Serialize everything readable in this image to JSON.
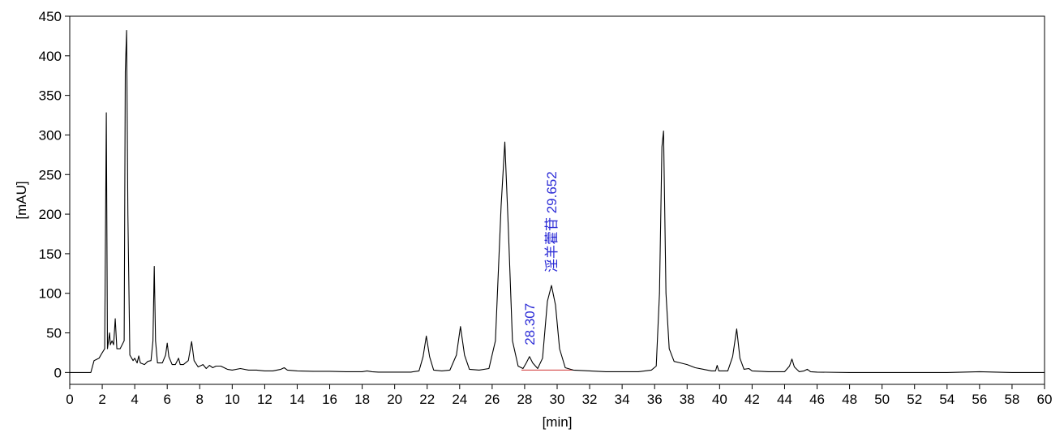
{
  "chart_data": {
    "type": "line",
    "xlabel": "[min]",
    "ylabel": "[mAU]",
    "xlim": [
      0,
      60
    ],
    "ylim": [
      -15,
      450
    ],
    "xticks": [
      0,
      2,
      4,
      6,
      8,
      10,
      12,
      14,
      16,
      18,
      20,
      22,
      24,
      26,
      28,
      30,
      32,
      34,
      36,
      38,
      40,
      42,
      44,
      46,
      48,
      50,
      52,
      54,
      56,
      58,
      60
    ],
    "yticks": [
      0,
      50,
      100,
      150,
      200,
      250,
      300,
      350,
      400,
      450
    ],
    "grid": false,
    "line_color": "#000000",
    "baseline_color": "#d03030",
    "label_color": "#2b2bd6",
    "baseline_segment": {
      "x": [
        27.8,
        31.0
      ],
      "y": [
        3,
        3
      ]
    },
    "peak_annotations": [
      {
        "text": "28.307",
        "x": 28.307,
        "y": 18
      },
      {
        "text": "淫羊藿苷 29.652",
        "x": 29.652,
        "y": 110
      }
    ],
    "series": [
      {
        "points": [
          [
            0,
            0
          ],
          [
            1.3,
            0
          ],
          [
            1.5,
            15
          ],
          [
            1.8,
            18
          ],
          [
            2.0,
            25
          ],
          [
            2.15,
            30
          ],
          [
            2.25,
            328
          ],
          [
            2.32,
            30
          ],
          [
            2.45,
            50
          ],
          [
            2.5,
            35
          ],
          [
            2.6,
            40
          ],
          [
            2.7,
            35
          ],
          [
            2.8,
            68
          ],
          [
            2.9,
            30
          ],
          [
            3.1,
            30
          ],
          [
            3.35,
            40
          ],
          [
            3.42,
            380
          ],
          [
            3.5,
            432
          ],
          [
            3.58,
            200
          ],
          [
            3.7,
            22
          ],
          [
            3.9,
            15
          ],
          [
            4.0,
            18
          ],
          [
            4.15,
            12
          ],
          [
            4.25,
            21
          ],
          [
            4.35,
            12
          ],
          [
            4.6,
            10
          ],
          [
            4.8,
            14
          ],
          [
            5.0,
            15
          ],
          [
            5.12,
            40
          ],
          [
            5.2,
            134
          ],
          [
            5.28,
            40
          ],
          [
            5.4,
            12
          ],
          [
            5.7,
            12
          ],
          [
            5.9,
            22
          ],
          [
            6.0,
            37
          ],
          [
            6.1,
            20
          ],
          [
            6.3,
            10
          ],
          [
            6.5,
            10
          ],
          [
            6.7,
            18
          ],
          [
            6.8,
            10
          ],
          [
            7.0,
            10
          ],
          [
            7.3,
            15
          ],
          [
            7.5,
            39
          ],
          [
            7.65,
            15
          ],
          [
            7.9,
            7
          ],
          [
            8.2,
            10
          ],
          [
            8.4,
            5
          ],
          [
            8.6,
            9
          ],
          [
            8.8,
            6
          ],
          [
            9.0,
            8
          ],
          [
            9.3,
            8
          ],
          [
            9.7,
            4
          ],
          [
            10.0,
            3
          ],
          [
            10.5,
            5
          ],
          [
            11.0,
            3
          ],
          [
            11.5,
            3
          ],
          [
            12.0,
            2
          ],
          [
            12.5,
            2
          ],
          [
            13.0,
            4
          ],
          [
            13.2,
            6
          ],
          [
            13.4,
            3
          ],
          [
            14,
            2
          ],
          [
            15,
            1.5
          ],
          [
            16,
            1.5
          ],
          [
            17,
            1
          ],
          [
            18,
            1
          ],
          [
            18.3,
            2
          ],
          [
            18.6,
            1
          ],
          [
            19.0,
            0.5
          ],
          [
            20,
            0.5
          ],
          [
            21.0,
            0.5
          ],
          [
            21.5,
            2
          ],
          [
            21.75,
            20
          ],
          [
            21.95,
            46
          ],
          [
            22.15,
            20
          ],
          [
            22.4,
            3
          ],
          [
            22.9,
            2
          ],
          [
            23.4,
            3
          ],
          [
            23.8,
            22
          ],
          [
            24.05,
            58
          ],
          [
            24.3,
            22
          ],
          [
            24.6,
            4
          ],
          [
            25.2,
            3
          ],
          [
            25.8,
            5
          ],
          [
            26.2,
            40
          ],
          [
            26.55,
            210
          ],
          [
            26.78,
            291
          ],
          [
            27.0,
            180
          ],
          [
            27.25,
            40
          ],
          [
            27.6,
            8
          ],
          [
            27.9,
            5
          ],
          [
            28.1,
            12
          ],
          [
            28.3,
            20
          ],
          [
            28.5,
            12
          ],
          [
            28.8,
            5
          ],
          [
            29.1,
            18
          ],
          [
            29.4,
            90
          ],
          [
            29.65,
            110
          ],
          [
            29.9,
            85
          ],
          [
            30.15,
            30
          ],
          [
            30.5,
            6
          ],
          [
            31.0,
            3
          ],
          [
            32.0,
            2
          ],
          [
            33.0,
            1
          ],
          [
            34.0,
            1
          ],
          [
            35.0,
            1
          ],
          [
            35.8,
            3
          ],
          [
            36.1,
            8
          ],
          [
            36.3,
            100
          ],
          [
            36.45,
            285
          ],
          [
            36.55,
            305
          ],
          [
            36.7,
            100
          ],
          [
            36.9,
            30
          ],
          [
            37.2,
            14
          ],
          [
            37.6,
            12
          ],
          [
            38.0,
            10
          ],
          [
            38.5,
            6
          ],
          [
            39.0,
            4
          ],
          [
            39.5,
            2
          ],
          [
            39.75,
            2
          ],
          [
            39.85,
            9
          ],
          [
            39.95,
            2
          ],
          [
            40.5,
            2
          ],
          [
            40.8,
            20
          ],
          [
            41.05,
            55
          ],
          [
            41.25,
            18
          ],
          [
            41.5,
            4
          ],
          [
            41.8,
            5
          ],
          [
            42.0,
            2
          ],
          [
            43.0,
            1
          ],
          [
            44.0,
            1
          ],
          [
            44.3,
            8
          ],
          [
            44.45,
            17
          ],
          [
            44.6,
            7
          ],
          [
            44.9,
            1
          ],
          [
            45.2,
            2
          ],
          [
            45.4,
            4
          ],
          [
            45.6,
            1
          ],
          [
            46,
            0.5
          ],
          [
            48,
            0
          ],
          [
            50,
            0
          ],
          [
            52,
            0
          ],
          [
            54,
            0
          ],
          [
            55,
            0.5
          ],
          [
            56,
            1
          ],
          [
            57,
            0.5
          ],
          [
            58,
            0
          ],
          [
            60,
            0
          ]
        ]
      }
    ]
  }
}
